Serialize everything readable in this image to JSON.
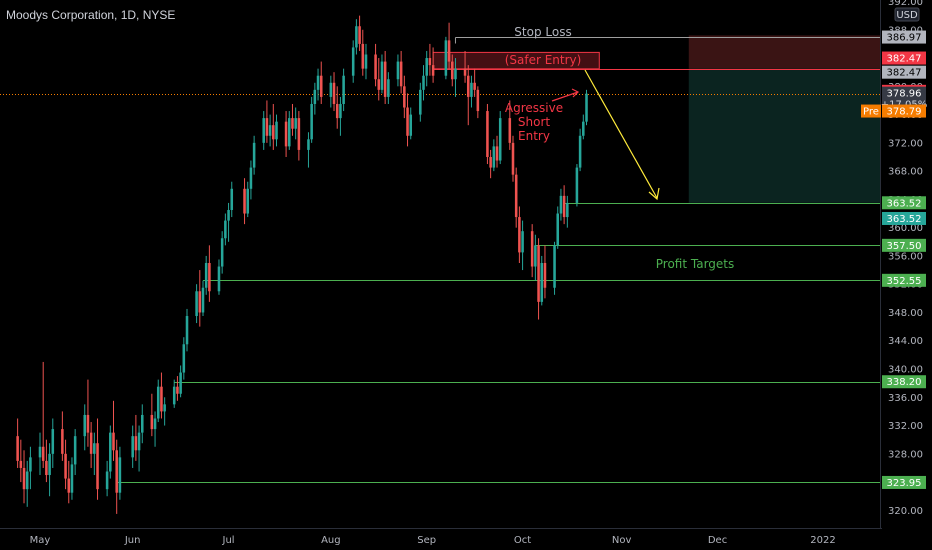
{
  "header": {
    "title": "Moodys Corporation, 1D, NYSE"
  },
  "currency_badge": "USD",
  "colors": {
    "up": "#26a69a",
    "down": "#ef5350",
    "levels": "#4caf50",
    "stop": "#9e9e9e",
    "entry": "#f23645",
    "arrow": "#ffeb3b",
    "premarket": "#f57c00"
  },
  "chart_data": {
    "type": "candlestick",
    "title": "Moodys Corporation, 1D, NYSE",
    "ylim": [
      318,
      392
    ],
    "y_ticks": [
      320,
      324,
      328,
      332,
      336,
      340,
      344,
      348,
      352,
      356,
      360,
      364,
      368,
      372,
      376,
      380,
      384,
      388,
      392
    ],
    "x_tick_labels": [
      {
        "label": "May",
        "x": "2021-05-03"
      },
      {
        "label": "Jun",
        "x": "2021-06-01"
      },
      {
        "label": "Jul",
        "x": "2021-07-01"
      },
      {
        "label": "Aug",
        "x": "2021-08-02"
      },
      {
        "label": "Sep",
        "x": "2021-09-01"
      },
      {
        "label": "Oct",
        "x": "2021-10-01"
      },
      {
        "label": "Nov",
        "x": "2021-11-01"
      },
      {
        "label": "Dec",
        "x": "2021-12-01"
      },
      {
        "label": "2022",
        "x": "2022-01-03"
      }
    ],
    "candles": [
      {
        "d": "2021-04-26",
        "o": 330.5,
        "h": 333.0,
        "l": 326.0,
        "c": 327.0
      },
      {
        "d": "2021-04-27",
        "o": 327.0,
        "h": 330.0,
        "l": 324.0,
        "c": 326.0
      },
      {
        "d": "2021-04-28",
        "o": 326.0,
        "h": 328.5,
        "l": 321.0,
        "c": 323.0
      },
      {
        "d": "2021-04-29",
        "o": 323.0,
        "h": 327.0,
        "l": 320.5,
        "c": 325.5
      },
      {
        "d": "2021-04-30",
        "o": 325.5,
        "h": 329.0,
        "l": 323.0,
        "c": 327.5
      },
      {
        "d": "2021-05-03",
        "o": 327.5,
        "h": 331.0,
        "l": 325.0,
        "c": 329.0
      },
      {
        "d": "2021-05-04",
        "o": 329.0,
        "h": 341.0,
        "l": 326.0,
        "c": 327.0
      },
      {
        "d": "2021-05-05",
        "o": 327.0,
        "h": 330.0,
        "l": 324.0,
        "c": 325.0
      },
      {
        "d": "2021-05-06",
        "o": 325.0,
        "h": 329.5,
        "l": 322.0,
        "c": 328.0
      },
      {
        "d": "2021-05-07",
        "o": 328.0,
        "h": 333.0,
        "l": 326.0,
        "c": 331.5
      },
      {
        "d": "2021-05-10",
        "o": 331.5,
        "h": 334.0,
        "l": 327.0,
        "c": 328.0
      },
      {
        "d": "2021-05-11",
        "o": 328.0,
        "h": 330.0,
        "l": 323.0,
        "c": 324.5
      },
      {
        "d": "2021-05-12",
        "o": 324.5,
        "h": 327.0,
        "l": 321.0,
        "c": 322.5
      },
      {
        "d": "2021-05-13",
        "o": 322.5,
        "h": 327.5,
        "l": 321.5,
        "c": 326.5
      },
      {
        "d": "2021-05-14",
        "o": 326.5,
        "h": 331.5,
        "l": 325.0,
        "c": 330.5
      },
      {
        "d": "2021-05-17",
        "o": 330.5,
        "h": 335.0,
        "l": 328.5,
        "c": 333.5
      },
      {
        "d": "2021-05-18",
        "o": 333.5,
        "h": 338.5,
        "l": 329.0,
        "c": 331.0
      },
      {
        "d": "2021-05-19",
        "o": 331.0,
        "h": 332.5,
        "l": 326.0,
        "c": 328.0
      },
      {
        "d": "2021-05-20",
        "o": 328.0,
        "h": 331.0,
        "l": 325.0,
        "c": 329.5
      },
      {
        "d": "2021-05-21",
        "o": 329.5,
        "h": 333.0,
        "l": 321.5,
        "c": 323.0
      },
      {
        "d": "2021-05-24",
        "o": 323.0,
        "h": 327.0,
        "l": 322.0,
        "c": 325.5
      },
      {
        "d": "2021-05-25",
        "o": 325.5,
        "h": 332.0,
        "l": 324.5,
        "c": 331.0
      },
      {
        "d": "2021-05-26",
        "o": 331.0,
        "h": 335.5,
        "l": 327.0,
        "c": 328.5
      },
      {
        "d": "2021-05-27",
        "o": 328.5,
        "h": 330.0,
        "l": 319.5,
        "c": 322.5
      },
      {
        "d": "2021-05-28",
        "o": 322.5,
        "h": 329.0,
        "l": 321.5,
        "c": 327.5
      },
      {
        "d": "2021-06-01",
        "o": 327.5,
        "h": 332.0,
        "l": 326.0,
        "c": 330.5
      },
      {
        "d": "2021-06-02",
        "o": 330.5,
        "h": 333.5,
        "l": 327.0,
        "c": 328.5
      },
      {
        "d": "2021-06-03",
        "o": 328.5,
        "h": 332.0,
        "l": 325.5,
        "c": 331.0
      },
      {
        "d": "2021-06-04",
        "o": 331.0,
        "h": 335.0,
        "l": 329.5,
        "c": 333.5
      },
      {
        "d": "2021-06-07",
        "o": 333.5,
        "h": 336.5,
        "l": 330.5,
        "c": 331.5
      },
      {
        "d": "2021-06-08",
        "o": 331.5,
        "h": 334.0,
        "l": 329.0,
        "c": 333.0
      },
      {
        "d": "2021-06-09",
        "o": 333.0,
        "h": 338.5,
        "l": 332.5,
        "c": 337.5
      },
      {
        "d": "2021-06-10",
        "o": 337.5,
        "h": 339.5,
        "l": 333.0,
        "c": 334.0
      },
      {
        "d": "2021-06-11",
        "o": 334.0,
        "h": 336.0,
        "l": 332.0,
        "c": 335.0
      },
      {
        "d": "2021-06-14",
        "o": 335.0,
        "h": 338.5,
        "l": 334.5,
        "c": 337.5
      },
      {
        "d": "2021-06-15",
        "o": 337.5,
        "h": 339.0,
        "l": 335.5,
        "c": 336.5
      },
      {
        "d": "2021-06-16",
        "o": 336.5,
        "h": 340.5,
        "l": 336.0,
        "c": 339.5
      },
      {
        "d": "2021-06-17",
        "o": 339.5,
        "h": 344.5,
        "l": 338.5,
        "c": 343.5
      },
      {
        "d": "2021-06-18",
        "o": 343.5,
        "h": 348.5,
        "l": 342.5,
        "c": 347.5
      },
      {
        "d": "2021-06-21",
        "o": 347.5,
        "h": 352.0,
        "l": 346.5,
        "c": 351.0
      },
      {
        "d": "2021-06-22",
        "o": 351.0,
        "h": 354.0,
        "l": 346.0,
        "c": 348.0
      },
      {
        "d": "2021-06-23",
        "o": 348.0,
        "h": 352.5,
        "l": 347.5,
        "c": 351.5
      },
      {
        "d": "2021-06-24",
        "o": 351.5,
        "h": 356.0,
        "l": 350.5,
        "c": 355.0
      },
      {
        "d": "2021-06-25",
        "o": 355.0,
        "h": 357.5,
        "l": 349.5,
        "c": 351.0
      },
      {
        "d": "2021-06-28",
        "o": 351.0,
        "h": 355.5,
        "l": 350.5,
        "c": 354.5
      },
      {
        "d": "2021-06-29",
        "o": 354.5,
        "h": 359.5,
        "l": 353.5,
        "c": 358.5
      },
      {
        "d": "2021-06-30",
        "o": 358.5,
        "h": 362.0,
        "l": 357.5,
        "c": 361.0
      },
      {
        "d": "2021-07-01",
        "o": 361.0,
        "h": 363.5,
        "l": 358.0,
        "c": 362.5
      },
      {
        "d": "2021-07-02",
        "o": 362.5,
        "h": 366.5,
        "l": 361.5,
        "c": 365.5
      },
      {
        "d": "2021-07-06",
        "o": 365.5,
        "h": 367.0,
        "l": 360.5,
        "c": 362.0
      },
      {
        "d": "2021-07-07",
        "o": 362.0,
        "h": 366.5,
        "l": 361.5,
        "c": 365.5
      },
      {
        "d": "2021-07-08",
        "o": 365.5,
        "h": 369.5,
        "l": 364.0,
        "c": 368.5
      },
      {
        "d": "2021-07-09",
        "o": 368.5,
        "h": 373.0,
        "l": 367.5,
        "c": 372.0
      },
      {
        "d": "2021-07-12",
        "o": 372.0,
        "h": 376.5,
        "l": 371.0,
        "c": 375.5
      },
      {
        "d": "2021-07-13",
        "o": 375.5,
        "h": 378.0,
        "l": 372.0,
        "c": 373.0
      },
      {
        "d": "2021-07-14",
        "o": 373.0,
        "h": 376.0,
        "l": 371.5,
        "c": 374.5
      },
      {
        "d": "2021-07-15",
        "o": 374.5,
        "h": 377.5,
        "l": 371.0,
        "c": 372.5
      },
      {
        "d": "2021-07-16",
        "o": 372.5,
        "h": 376.0,
        "l": 371.5,
        "c": 375.0
      },
      {
        "d": "2021-07-19",
        "o": 375.0,
        "h": 376.5,
        "l": 370.0,
        "c": 371.5
      },
      {
        "d": "2021-07-20",
        "o": 371.5,
        "h": 376.5,
        "l": 371.0,
        "c": 375.5
      },
      {
        "d": "2021-07-21",
        "o": 375.5,
        "h": 377.5,
        "l": 373.0,
        "c": 374.0
      },
      {
        "d": "2021-07-22",
        "o": 374.0,
        "h": 377.0,
        "l": 372.5,
        "c": 375.5
      },
      {
        "d": "2021-07-23",
        "o": 375.5,
        "h": 376.5,
        "l": 369.5,
        "c": 371.0
      },
      {
        "d": "2021-07-26",
        "o": 371.0,
        "h": 373.5,
        "l": 368.5,
        "c": 372.5
      },
      {
        "d": "2021-07-27",
        "o": 372.5,
        "h": 378.5,
        "l": 372.0,
        "c": 377.5
      },
      {
        "d": "2021-07-28",
        "o": 377.5,
        "h": 380.5,
        "l": 376.0,
        "c": 379.5
      },
      {
        "d": "2021-07-29",
        "o": 379.5,
        "h": 382.5,
        "l": 378.0,
        "c": 381.5
      },
      {
        "d": "2021-07-30",
        "o": 381.5,
        "h": 383.5,
        "l": 377.5,
        "c": 378.5
      },
      {
        "d": "2021-08-02",
        "o": 378.5,
        "h": 381.5,
        "l": 377.0,
        "c": 380.5
      },
      {
        "d": "2021-08-03",
        "o": 380.5,
        "h": 382.0,
        "l": 376.5,
        "c": 377.5
      },
      {
        "d": "2021-08-04",
        "o": 377.5,
        "h": 380.0,
        "l": 374.0,
        "c": 375.5
      },
      {
        "d": "2021-08-05",
        "o": 375.5,
        "h": 378.5,
        "l": 373.0,
        "c": 377.5
      },
      {
        "d": "2021-08-06",
        "o": 377.5,
        "h": 382.5,
        "l": 376.5,
        "c": 381.5
      },
      {
        "d": "2021-08-09",
        "o": 381.5,
        "h": 386.5,
        "l": 380.5,
        "c": 385.5
      },
      {
        "d": "2021-08-10",
        "o": 385.5,
        "h": 389.5,
        "l": 384.5,
        "c": 388.5
      },
      {
        "d": "2021-08-11",
        "o": 388.5,
        "h": 390.0,
        "l": 385.0,
        "c": 386.0
      },
      {
        "d": "2021-08-12",
        "o": 386.0,
        "h": 388.0,
        "l": 381.5,
        "c": 382.5
      },
      {
        "d": "2021-08-13",
        "o": 382.5,
        "h": 386.0,
        "l": 381.0,
        "c": 384.5
      },
      {
        "d": "2021-08-16",
        "o": 384.5,
        "h": 386.0,
        "l": 380.0,
        "c": 381.0
      },
      {
        "d": "2021-08-17",
        "o": 381.0,
        "h": 384.0,
        "l": 378.0,
        "c": 379.5
      },
      {
        "d": "2021-08-18",
        "o": 379.5,
        "h": 384.5,
        "l": 379.0,
        "c": 383.5
      },
      {
        "d": "2021-08-19",
        "o": 383.5,
        "h": 385.0,
        "l": 377.5,
        "c": 378.5
      },
      {
        "d": "2021-08-20",
        "o": 378.5,
        "h": 382.0,
        "l": 377.5,
        "c": 381.0
      },
      {
        "d": "2021-08-23",
        "o": 381.0,
        "h": 384.5,
        "l": 380.0,
        "c": 383.5
      },
      {
        "d": "2021-08-24",
        "o": 383.5,
        "h": 385.0,
        "l": 379.0,
        "c": 380.0
      },
      {
        "d": "2021-08-25",
        "o": 380.0,
        "h": 381.5,
        "l": 375.5,
        "c": 377.0
      },
      {
        "d": "2021-08-26",
        "o": 377.0,
        "h": 379.0,
        "l": 371.5,
        "c": 373.0
      },
      {
        "d": "2021-08-27",
        "o": 373.0,
        "h": 377.0,
        "l": 372.5,
        "c": 376.0
      },
      {
        "d": "2021-08-30",
        "o": 376.0,
        "h": 380.5,
        "l": 375.0,
        "c": 379.5
      },
      {
        "d": "2021-08-31",
        "o": 379.5,
        "h": 383.0,
        "l": 378.0,
        "c": 381.5
      },
      {
        "d": "2021-09-01",
        "o": 381.5,
        "h": 385.0,
        "l": 380.0,
        "c": 384.0
      },
      {
        "d": "2021-09-02",
        "o": 384.0,
        "h": 386.0,
        "l": 381.5,
        "c": 383.0
      },
      {
        "d": "2021-09-03",
        "o": 383.0,
        "h": 385.5,
        "l": 380.5,
        "c": 381.5
      },
      {
        "d": "2021-09-07",
        "o": 381.5,
        "h": 387.0,
        "l": 381.0,
        "c": 386.5
      },
      {
        "d": "2021-09-08",
        "o": 386.5,
        "h": 389.0,
        "l": 382.5,
        "c": 383.5
      },
      {
        "d": "2021-09-09",
        "o": 383.5,
        "h": 384.5,
        "l": 380.0,
        "c": 381.0
      },
      {
        "d": "2021-09-10",
        "o": 381.0,
        "h": 384.0,
        "l": 378.5,
        "c": 382.5
      },
      {
        "d": "2021-09-13",
        "o": 382.5,
        "h": 385.0,
        "l": 380.5,
        "c": 381.5
      },
      {
        "d": "2021-09-14",
        "o": 381.5,
        "h": 383.0,
        "l": 374.5,
        "c": 378.5
      },
      {
        "d": "2021-09-15",
        "o": 378.5,
        "h": 381.5,
        "l": 377.0,
        "c": 380.5
      },
      {
        "d": "2021-09-16",
        "o": 380.5,
        "h": 382.5,
        "l": 378.5,
        "c": 379.5
      },
      {
        "d": "2021-09-17",
        "o": 379.5,
        "h": 380.0,
        "l": 375.5,
        "c": 376.5
      },
      {
        "d": "2021-09-20",
        "o": 376.5,
        "h": 377.5,
        "l": 369.0,
        "c": 370.0
      },
      {
        "d": "2021-09-21",
        "o": 370.0,
        "h": 371.0,
        "l": 367.0,
        "c": 368.5
      },
      {
        "d": "2021-09-22",
        "o": 368.5,
        "h": 372.5,
        "l": 368.0,
        "c": 371.5
      },
      {
        "d": "2021-09-23",
        "o": 371.5,
        "h": 373.0,
        "l": 368.5,
        "c": 369.5
      },
      {
        "d": "2021-09-24",
        "o": 369.5,
        "h": 376.5,
        "l": 369.0,
        "c": 375.5
      },
      {
        "d": "2021-09-27",
        "o": 375.5,
        "h": 378.0,
        "l": 371.0,
        "c": 372.0
      },
      {
        "d": "2021-09-28",
        "o": 372.0,
        "h": 373.0,
        "l": 366.5,
        "c": 367.5
      },
      {
        "d": "2021-09-29",
        "o": 367.5,
        "h": 368.5,
        "l": 360.0,
        "c": 361.5
      },
      {
        "d": "2021-09-30",
        "o": 361.5,
        "h": 363.0,
        "l": 355.0,
        "c": 356.5
      },
      {
        "d": "2021-10-01",
        "o": 356.5,
        "h": 361.0,
        "l": 354.0,
        "c": 359.5
      },
      {
        "d": "2021-10-04",
        "o": 359.5,
        "h": 360.5,
        "l": 353.0,
        "c": 354.5
      },
      {
        "d": "2021-10-05",
        "o": 354.5,
        "h": 359.0,
        "l": 352.5,
        "c": 357.5
      },
      {
        "d": "2021-10-06",
        "o": 357.5,
        "h": 358.5,
        "l": 347.0,
        "c": 349.5
      },
      {
        "d": "2021-10-07",
        "o": 349.5,
        "h": 356.0,
        "l": 349.0,
        "c": 355.0
      },
      {
        "d": "2021-10-08",
        "o": 355.0,
        "h": 357.5,
        "l": 350.0,
        "c": 351.5
      },
      {
        "d": "2021-10-11",
        "o": 351.5,
        "h": 358.0,
        "l": 350.5,
        "c": 357.5
      },
      {
        "d": "2021-10-12",
        "o": 357.5,
        "h": 363.0,
        "l": 357.0,
        "c": 362.0
      },
      {
        "d": "2021-10-13",
        "o": 362.0,
        "h": 365.5,
        "l": 361.0,
        "c": 364.5
      },
      {
        "d": "2021-10-14",
        "o": 364.5,
        "h": 366.0,
        "l": 360.5,
        "c": 361.5
      },
      {
        "d": "2021-10-15",
        "o": 361.5,
        "h": 364.5,
        "l": 360.0,
        "c": 363.5
      },
      {
        "d": "2021-10-18",
        "o": 363.5,
        "h": 369.0,
        "l": 363.0,
        "c": 368.5
      },
      {
        "d": "2021-10-19",
        "o": 368.5,
        "h": 374.0,
        "l": 368.0,
        "c": 373.0
      },
      {
        "d": "2021-10-20",
        "o": 373.0,
        "h": 376.0,
        "l": 372.5,
        "c": 375.0
      },
      {
        "d": "2021-10-21",
        "o": 375.0,
        "h": 379.5,
        "l": 374.5,
        "c": 378.96
      }
    ]
  },
  "levels": [
    {
      "name": "stop-loss",
      "price": 386.97,
      "start": "2021-09-10",
      "end": "2022-01-31",
      "color": "#9e9e9e"
    },
    {
      "name": "safer-entry",
      "price": 382.47,
      "start": "2021-09-03",
      "end": "2022-01-31",
      "color": "#f23645"
    },
    {
      "name": "target-1",
      "price": 363.52,
      "start": "2021-10-14",
      "end": "2022-01-31",
      "color": "#4caf50"
    },
    {
      "name": "target-2",
      "price": 357.5,
      "start": "2021-10-05",
      "end": "2022-01-31",
      "color": "#4caf50"
    },
    {
      "name": "target-3",
      "price": 352.55,
      "start": "2021-06-23",
      "end": "2022-01-31",
      "color": "#4caf50"
    },
    {
      "name": "target-4",
      "price": 338.2,
      "start": "2021-06-14",
      "end": "2022-01-31",
      "color": "#4caf50"
    },
    {
      "name": "target-5",
      "price": 323.95,
      "start": "2021-05-27",
      "end": "2022-01-31",
      "color": "#4caf50"
    }
  ],
  "risk_zone": {
    "top": 387.2,
    "bottom": 382.47,
    "start": "2021-11-22",
    "end": "2022-01-31"
  },
  "reward_zone": {
    "top": 382.47,
    "bottom": 363.52,
    "start": "2021-11-22",
    "end": "2022-01-31"
  },
  "entry_zone": {
    "top": 384.8,
    "bottom": 382.47,
    "start": "2021-09-03",
    "end": "2021-10-25"
  },
  "annotations": {
    "stop_loss": "Stop Loss",
    "safer_entry": "(Safer Entry)",
    "aggressive_entry": [
      "Agressive",
      "Short",
      "Entry"
    ],
    "profit_targets": "Profit Targets"
  },
  "price_tags": [
    {
      "label": "386.97",
      "price": 386.97,
      "bg": "#b2b5be",
      "fg": "#000000"
    },
    {
      "label": "382.47",
      "price": 384.0,
      "bg": "#f23645",
      "fg": "#ffffff"
    },
    {
      "label": "382.47",
      "price": 382.0,
      "bg": "#b2b5be",
      "fg": "#000000"
    },
    {
      "label": "379.29",
      "price": 379.29,
      "bg": "#f23645",
      "fg": "#ffffff"
    },
    {
      "label": "363.52",
      "price": 363.52,
      "bg": "#4caf50",
      "fg": "#ffffff"
    },
    {
      "label": "363.52",
      "price": 361.3,
      "bg": "#26a69a",
      "fg": "#ffffff"
    },
    {
      "label": "357.50",
      "price": 357.5,
      "bg": "#4caf50",
      "fg": "#ffffff"
    },
    {
      "label": "352.55",
      "price": 352.55,
      "bg": "#4caf50",
      "fg": "#ffffff"
    },
    {
      "label": "338.20",
      "price": 338.2,
      "bg": "#4caf50",
      "fg": "#ffffff"
    },
    {
      "label": "323.95",
      "price": 323.95,
      "bg": "#4caf50",
      "fg": "#ffffff"
    }
  ],
  "last_price": {
    "price": 378.96,
    "label": "378.96",
    "change": "+17.05%"
  },
  "premarket": {
    "label": "Pre",
    "price": 376.5,
    "value": "378.79"
  }
}
